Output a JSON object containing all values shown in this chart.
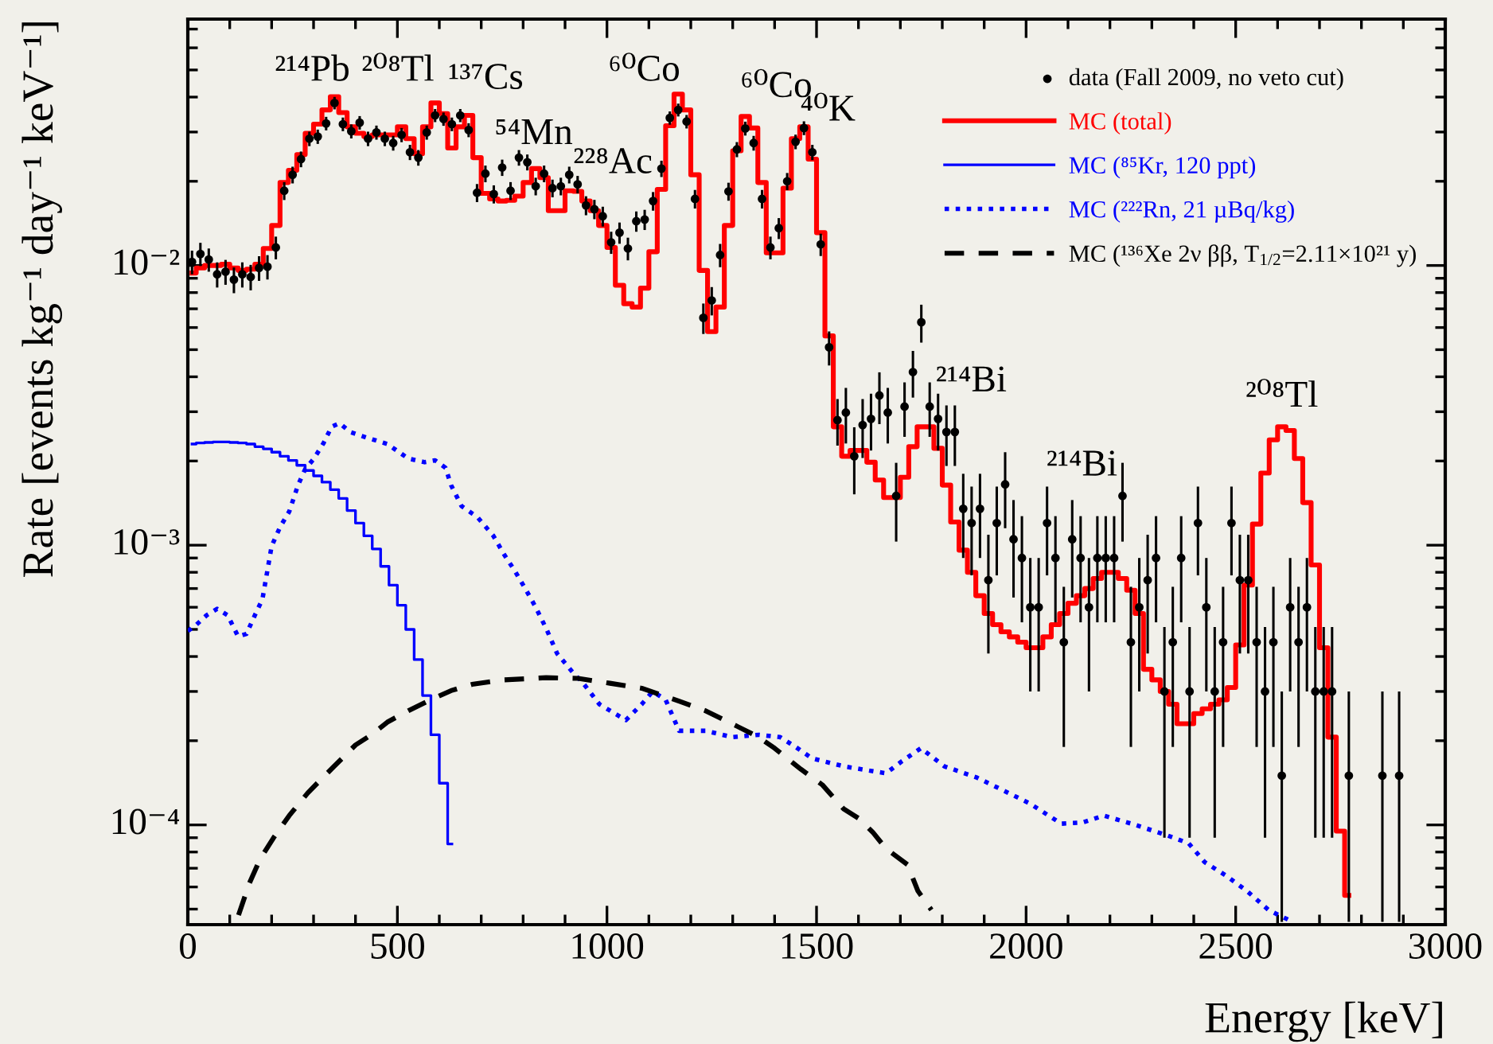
{
  "chart_data": {
    "type": "scatter",
    "xlabel": "Energy [keV]",
    "ylabel": "Rate [events kg⁻¹ day⁻¹ keV⁻¹]",
    "xlim": [
      0,
      3000
    ],
    "ylim": [
      4.4e-05,
      0.076
    ],
    "log": "y",
    "xticks": [
      0,
      500,
      1000,
      1500,
      2000,
      2500,
      3000
    ],
    "yticks": [
      {
        "value": 0.0001,
        "label": "10⁻⁴"
      },
      {
        "value": 0.001,
        "label": "10⁻³"
      },
      {
        "value": 0.01,
        "label": "10⁻²"
      }
    ],
    "grid": false,
    "legend": "top right",
    "series": [
      {
        "name": "data (Fall 2009, no veto cut)",
        "marker": "circle",
        "color": "#000000",
        "x": [
          10,
          30,
          50,
          70,
          90,
          110,
          130,
          150,
          170,
          190,
          210,
          230,
          250,
          270,
          290,
          310,
          330,
          350,
          370,
          390,
          410,
          430,
          450,
          470,
          490,
          510,
          530,
          550,
          570,
          590,
          610,
          630,
          650,
          670,
          690,
          710,
          730,
          750,
          770,
          790,
          810,
          830,
          850,
          870,
          890,
          910,
          930,
          950,
          970,
          990,
          1010,
          1030,
          1050,
          1070,
          1090,
          1110,
          1130,
          1150,
          1170,
          1190,
          1210,
          1230,
          1250,
          1270,
          1290,
          1310,
          1330,
          1350,
          1370,
          1390,
          1410,
          1430,
          1450,
          1470,
          1490,
          1510,
          1530,
          1550,
          1570,
          1590,
          1610,
          1630,
          1650,
          1670,
          1690,
          1710,
          1730,
          1750,
          1770,
          1790,
          1810,
          1830,
          1850,
          1870,
          1890,
          1910,
          1930,
          1950,
          1970,
          1990,
          2010,
          2030,
          2050,
          2070,
          2090,
          2110,
          2130,
          2150,
          2170,
          2190,
          2210,
          2230,
          2250,
          2270,
          2290,
          2310,
          2330,
          2350,
          2370,
          2390,
          2410,
          2430,
          2450,
          2470,
          2490,
          2510,
          2530,
          2550,
          2570,
          2590,
          2610,
          2630,
          2650,
          2670,
          2690,
          2710,
          2730,
          2770,
          2850,
          2890
        ],
        "values": [
          0.0103,
          0.011,
          0.0105,
          0.0093,
          0.0095,
          0.0089,
          0.0093,
          0.0091,
          0.0098,
          0.0099,
          0.0116,
          0.0185,
          0.0211,
          0.024,
          0.0284,
          0.0289,
          0.0322,
          0.0381,
          0.032,
          0.0302,
          0.0324,
          0.0284,
          0.0299,
          0.0284,
          0.0274,
          0.0293,
          0.0254,
          0.0243,
          0.0299,
          0.0344,
          0.0334,
          0.032,
          0.0344,
          0.0305,
          0.0182,
          0.0213,
          0.018,
          0.0224,
          0.0185,
          0.0243,
          0.0234,
          0.0192,
          0.0213,
          0.0189,
          0.0192,
          0.0211,
          0.0195,
          0.0164,
          0.0159,
          0.015,
          0.0121,
          0.0131,
          0.0115,
          0.0144,
          0.0146,
          0.017,
          0.0222,
          0.0337,
          0.036,
          0.0327,
          0.0173,
          0.0065,
          0.0075,
          0.0109,
          0.0184,
          0.026,
          0.0309,
          0.0274,
          0.0173,
          0.0116,
          0.0136,
          0.02,
          0.0277,
          0.031,
          0.0254,
          0.0119,
          0.0051,
          0.0028,
          0.00298,
          0.00208,
          0.00269,
          0.00283,
          0.00343,
          0.00298,
          0.0015,
          0.00313,
          0.00416,
          0.00627,
          0.00313,
          0.00283,
          0.00254,
          0.00254,
          0.00135,
          0.0012,
          0.00135,
          0.00075,
          0.0012,
          0.00165,
          0.00105,
          0.0009,
          0.0006,
          0.0006,
          0.0012,
          0.0009,
          0.00045,
          0.00105,
          0.0009,
          0.0006,
          0.0009,
          0.0009,
          0.0009,
          0.0015,
          0.00045,
          0.0006,
          0.00075,
          0.0009,
          0.0003,
          0.00045,
          0.0009,
          0.0003,
          0.0012,
          0.0006,
          0.0003,
          0.00045,
          0.0012,
          0.00075,
          0.00075,
          0.00045,
          0.0003,
          0.00045,
          0.00015,
          0.0006,
          0.00045,
          0.0006,
          0.0003,
          0.0003,
          0.0003,
          0.00015,
          0.00015,
          0.00015
        ],
        "errors": [
          0.001,
          0.00105,
          0.001,
          0.00096,
          0.00097,
          0.00094,
          0.00096,
          0.00095,
          0.00099,
          0.00099,
          0.00108,
          0.00136,
          0.00145,
          0.00155,
          0.00169,
          0.0017,
          0.00179,
          0.00195,
          0.00179,
          0.00174,
          0.0018,
          0.00169,
          0.00173,
          0.00169,
          0.00166,
          0.00171,
          0.00159,
          0.00156,
          0.00173,
          0.00185,
          0.00183,
          0.00179,
          0.00185,
          0.00175,
          0.00135,
          0.00146,
          0.00134,
          0.0015,
          0.00136,
          0.00156,
          0.00153,
          0.00139,
          0.00146,
          0.00137,
          0.00139,
          0.00145,
          0.0014,
          0.00128,
          0.00126,
          0.00122,
          0.0011,
          0.00114,
          0.00107,
          0.0012,
          0.00121,
          0.0013,
          0.00149,
          0.00184,
          0.0019,
          0.00181,
          0.00132,
          0.00081,
          0.00087,
          0.00104,
          0.00136,
          0.00161,
          0.00176,
          0.00166,
          0.00132,
          0.00108,
          0.00117,
          0.00141,
          0.00166,
          0.00176,
          0.00159,
          0.00109,
          0.00071,
          0.00053,
          0.00067,
          0.00056,
          0.00064,
          0.00065,
          0.00072,
          0.00067,
          0.00047,
          0.00069,
          0.00079,
          0.00097,
          0.00069,
          0.00065,
          0.00062,
          0.00062,
          0.00045,
          0.00042,
          0.00045,
          0.00034,
          0.00042,
          0.0005,
          0.0004,
          0.00037,
          0.0003,
          0.0003,
          0.00042,
          0.00037,
          0.00026,
          0.0004,
          0.00037,
          0.0003,
          0.00037,
          0.00037,
          0.00037,
          0.00047,
          0.00026,
          0.0003,
          0.00034,
          0.00037,
          0.00021,
          0.00026,
          0.00037,
          0.00021,
          0.00042,
          0.0003,
          0.00021,
          0.00026,
          0.00042,
          0.00034,
          0.00034,
          0.00026,
          0.00021,
          0.00026,
          [
            4.5e-05,
            0.0003
          ],
          0.0003,
          0.00026,
          0.0003,
          0.00021,
          0.00021,
          0.00021,
          [
            4.5e-05,
            0.0003
          ],
          [
            4.5e-05,
            0.0003
          ],
          [
            4.5e-05,
            0.0003
          ]
        ]
      },
      {
        "name": "MC (total)",
        "type": "step",
        "color": "#ff0000",
        "line_style": "solid",
        "x": [
          10,
          30,
          50,
          70,
          90,
          110,
          130,
          150,
          170,
          190,
          210,
          230,
          250,
          270,
          290,
          310,
          330,
          350,
          370,
          390,
          410,
          430,
          450,
          470,
          490,
          510,
          530,
          550,
          570,
          590,
          610,
          630,
          650,
          670,
          690,
          710,
          730,
          750,
          770,
          790,
          810,
          830,
          850,
          870,
          890,
          910,
          930,
          950,
          970,
          990,
          1010,
          1030,
          1050,
          1070,
          1090,
          1110,
          1130,
          1150,
          1170,
          1190,
          1210,
          1230,
          1250,
          1270,
          1290,
          1310,
          1330,
          1350,
          1370,
          1390,
          1410,
          1430,
          1450,
          1470,
          1490,
          1510,
          1530,
          1550,
          1570,
          1590,
          1610,
          1630,
          1650,
          1670,
          1690,
          1710,
          1730,
          1750,
          1770,
          1790,
          1810,
          1830,
          1850,
          1870,
          1890,
          1910,
          1930,
          1950,
          1970,
          1990,
          2010,
          2030,
          2050,
          2070,
          2090,
          2110,
          2130,
          2150,
          2170,
          2190,
          2210,
          2230,
          2250,
          2270,
          2290,
          2310,
          2330,
          2350,
          2370,
          2390,
          2410,
          2430,
          2450,
          2470,
          2490,
          2510,
          2530,
          2550,
          2570,
          2590,
          2610,
          2630,
          2650,
          2670,
          2690,
          2710,
          2730,
          2750,
          2770
        ],
        "values": [
          0.0094,
          0.0098,
          0.01,
          0.01,
          0.0101,
          0.0098,
          0.0096,
          0.0097,
          0.0101,
          0.0115,
          0.0139,
          0.0198,
          0.0219,
          0.0249,
          0.0297,
          0.032,
          0.036,
          0.0401,
          0.0352,
          0.0313,
          0.0297,
          0.0289,
          0.0293,
          0.0293,
          0.0293,
          0.0313,
          0.0284,
          0.0251,
          0.0313,
          0.0381,
          0.0349,
          0.0263,
          0.0313,
          0.0344,
          0.0243,
          0.0181,
          0.0173,
          0.017,
          0.0171,
          0.0177,
          0.0198,
          0.0222,
          0.0206,
          0.0157,
          0.0157,
          0.0185,
          0.0184,
          0.017,
          0.0157,
          0.0139,
          0.0116,
          0.0085,
          0.0073,
          0.0071,
          0.0083,
          0.0112,
          0.0187,
          0.0316,
          0.041,
          0.036,
          0.0211,
          0.0096,
          0.0058,
          0.0071,
          0.0139,
          0.0257,
          0.0341,
          0.031,
          0.0198,
          0.0111,
          0.0111,
          0.0189,
          0.0284,
          0.0313,
          0.024,
          0.0131,
          0.0056,
          0.00265,
          0.00208,
          0.00218,
          0.00218,
          0.00198,
          0.00171,
          0.00148,
          0.00148,
          0.00175,
          0.00225,
          0.00265,
          0.00265,
          0.00222,
          0.00164,
          0.00121,
          0.00096,
          0.0008,
          0.00066,
          0.00057,
          0.00052,
          0.00049,
          0.00047,
          0.00045,
          0.00043,
          0.00043,
          0.00047,
          0.00052,
          0.00057,
          0.00062,
          0.00066,
          0.0007,
          0.00076,
          0.0008,
          0.0008,
          0.00076,
          0.00069,
          0.00057,
          0.00036,
          0.00033,
          0.0003,
          0.00027,
          0.00023,
          0.00023,
          0.00025,
          0.00026,
          0.00027,
          0.00028,
          0.00031,
          0.00044,
          0.00072,
          0.00119,
          0.00181,
          0.00238,
          0.00265,
          0.00257,
          0.00204,
          0.00142,
          0.00085,
          0.00043,
          0.000206,
          9.5e-05,
          5.6e-05
        ]
      },
      {
        "name": "MC (⁸⁵Kr, 120 ppt)",
        "type": "step",
        "color": "#0000ff",
        "line_style": "solid",
        "x": [
          10,
          30,
          50,
          70,
          90,
          110,
          130,
          150,
          170,
          190,
          210,
          230,
          250,
          270,
          290,
          310,
          330,
          350,
          370,
          390,
          410,
          430,
          450,
          470,
          490,
          510,
          530,
          550,
          570,
          590,
          610,
          630
        ],
        "values": [
          0.0023,
          0.00232,
          0.00233,
          0.00234,
          0.00234,
          0.00233,
          0.00232,
          0.0023,
          0.00225,
          0.00221,
          0.00215,
          0.00208,
          0.00201,
          0.00193,
          0.00185,
          0.00177,
          0.00168,
          0.00158,
          0.00147,
          0.00133,
          0.0012,
          0.00108,
          0.00097,
          0.00084,
          0.00072,
          0.00061,
          0.0005,
          0.00039,
          0.00029,
          0.00021,
          0.000141,
          8.55e-05
        ]
      },
      {
        "name": "MC (²²²Rn, 21 µBq/kg)",
        "type": "line",
        "color": "#0000ff",
        "line_style": "dotted",
        "x": [
          0,
          20,
          45,
          70,
          95,
          120,
          140,
          160,
          178,
          200,
          220,
          242,
          263,
          280,
          301,
          324,
          343,
          362,
          387,
          425,
          476,
          526,
          565,
          590,
          615,
          628,
          653,
          691,
          729,
          754,
          780,
          805,
          830,
          856,
          881,
          919,
          944,
          982,
          1045,
          1083,
          1109,
          1140,
          1172,
          1235,
          1299,
          1362,
          1413,
          1450,
          1489,
          1565,
          1641,
          1666,
          1704,
          1749,
          1805,
          1881,
          1945,
          2010,
          2084,
          2135,
          2185,
          2261,
          2337,
          2388,
          2426,
          2476,
          2527,
          2578,
          2628
        ],
        "values": [
          0.000493,
          0.000519,
          0.000562,
          0.000592,
          0.000562,
          0.000472,
          0.000482,
          0.000562,
          0.000641,
          0.000993,
          0.00116,
          0.00132,
          0.00164,
          0.00187,
          0.00204,
          0.00232,
          0.00265,
          0.00273,
          0.00254,
          0.00243,
          0.0023,
          0.00204,
          0.00198,
          0.00201,
          0.00189,
          0.00164,
          0.00138,
          0.00126,
          0.00108,
          0.00093,
          0.00081,
          0.0007,
          0.0006,
          0.0005,
          0.00041,
          0.00035,
          0.00032,
          0.00027,
          0.000237,
          0.00027,
          0.0003,
          0.00028,
          0.000217,
          0.000217,
          0.000206,
          0.00021,
          0.000206,
          0.00019,
          0.000173,
          0.000162,
          0.000155,
          0.000153,
          0.000169,
          0.000188,
          0.000162,
          0.000148,
          0.000133,
          0.000119,
          0.000101,
          0.000102,
          0.000108,
          0.0001,
          9.17e-05,
          8.59e-05,
          7.36e-05,
          6.6e-05,
          5.8e-05,
          4.97e-05,
          4.56e-05
        ]
      },
      {
        "name": "MC (¹³⁶Xe 2ν ββ, T$_{1/2}$=2.11×10²¹ y)",
        "type": "line",
        "color": "#000000",
        "line_style": "dashed",
        "x": [
          121,
          147,
          172,
          204,
          242,
          286,
          311,
          349,
          400,
          438,
          476,
          526,
          577,
          628,
          678,
          754,
          855,
          931,
          1007,
          1083,
          1172,
          1235,
          1311,
          1362,
          1400,
          1463,
          1514,
          1565,
          1603,
          1635,
          1666,
          1717,
          1742,
          1774
        ],
        "values": [
          4.76e-05,
          6.19e-05,
          7.53e-05,
          8.97e-05,
          0.000108,
          0.00013,
          0.000142,
          0.000162,
          0.000193,
          0.00021,
          0.000233,
          0.000256,
          0.000279,
          0.000302,
          0.000318,
          0.00033,
          0.000336,
          0.000334,
          0.000321,
          0.000308,
          0.000277,
          0.000256,
          0.000225,
          0.000206,
          0.000188,
          0.000158,
          0.000139,
          0.000114,
          0.000105,
          9.38e-05,
          8.22e-05,
          7.21e-05,
          5.8e-05,
          4.97e-05
        ]
      }
    ],
    "annotations": [
      "²¹⁴Pb",
      "²⁰⁸Tl",
      "¹³⁷Cs",
      "⁵⁴Mn",
      "²²⁸Ac",
      "⁶⁰Co",
      "⁶⁰Co",
      "⁴⁰K",
      "²¹⁴Bi",
      "²¹⁴Bi",
      "²⁰⁸Tl"
    ]
  }
}
